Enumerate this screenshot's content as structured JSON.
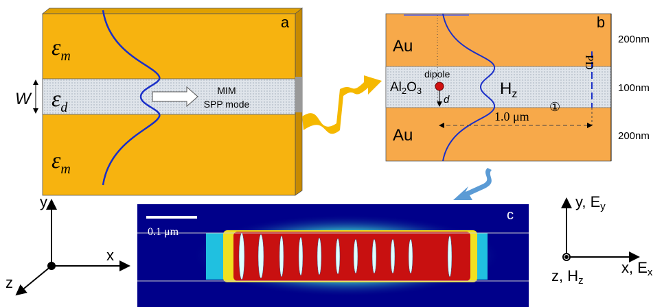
{
  "panel_a": {
    "label": "a",
    "top_medium": [
      "ε",
      "m"
    ],
    "core": [
      "ε",
      "d"
    ],
    "bottom_medium": [
      "ε",
      "m"
    ],
    "width_label": "W",
    "mode_label": [
      "MIM",
      "SPP mode"
    ]
  },
  "panel_b": {
    "label": "b",
    "top_metal": "Au",
    "bottom_metal": "Au",
    "core": [
      "Al",
      "2",
      "O",
      "3"
    ],
    "source": "dipole",
    "distance": "d",
    "field": [
      "H",
      "z"
    ],
    "detector": "PD",
    "length": "1.0 μm",
    "marker": "①",
    "thicknesses": [
      "200nm",
      "100nm",
      "200nm"
    ]
  },
  "panel_c": {
    "label": "c",
    "scale": "0.1 μm"
  },
  "axes_left": {
    "y": "y",
    "x": "x",
    "z": "z"
  },
  "axes_right": {
    "y": [
      "y, E",
      "y"
    ],
    "x": [
      "x, E",
      "x"
    ],
    "z": [
      "z, H",
      "z"
    ]
  }
}
